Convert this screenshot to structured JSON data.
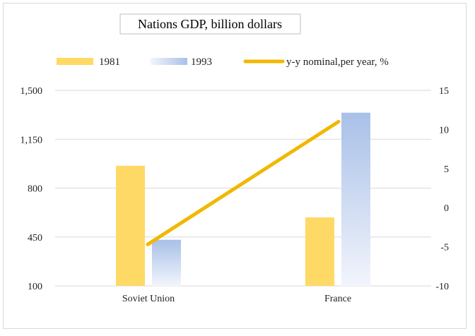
{
  "chart_data": {
    "type": "bar",
    "title": "Nations GDP, billion dollars",
    "categories": [
      "Soviet Union",
      "France"
    ],
    "series": [
      {
        "name": "1981",
        "type": "bar",
        "axis": "left",
        "values": [
          960,
          590
        ],
        "color": "#ffd966"
      },
      {
        "name": "1993",
        "type": "bar",
        "axis": "left",
        "values": [
          430,
          1340
        ],
        "color": "#a9c0e8"
      },
      {
        "name": "y-y nominal,per year, %",
        "type": "line",
        "axis": "right",
        "values": [
          -4.7,
          11.0
        ],
        "color": "#f0b800"
      }
    ],
    "y_left": {
      "ylim": [
        100,
        1500
      ],
      "ticks": [
        "100",
        "450",
        "800",
        "1,150",
        "1,500"
      ],
      "tick_values": [
        100,
        450,
        800,
        1150,
        1500
      ]
    },
    "y_right": {
      "ylim": [
        -10,
        15
      ],
      "ticks": [
        "-10",
        "-5",
        "0",
        "5",
        "10",
        "15"
      ],
      "tick_values": [
        -10,
        -5,
        0,
        5,
        10,
        15
      ]
    },
    "grid": true,
    "legend_position": "top"
  }
}
